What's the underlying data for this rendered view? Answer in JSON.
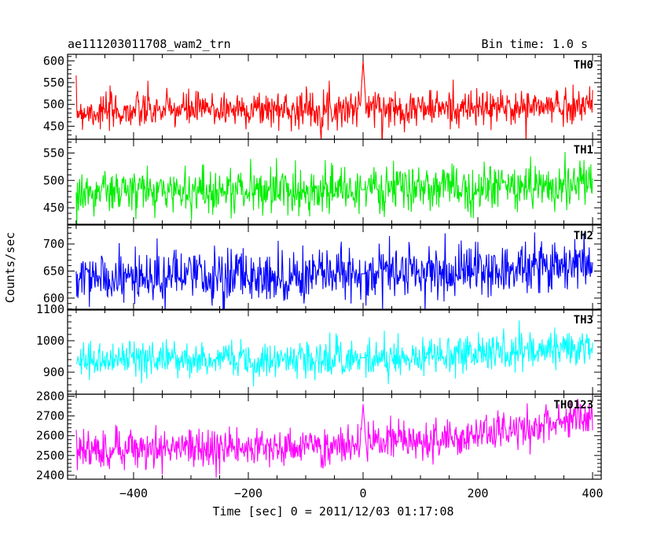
{
  "header": {
    "left": "ae111203011708_wam2_trn",
    "right": "Bin time: 1.0 s"
  },
  "chart_data": {
    "type": "line",
    "xlabel": "Time [sec] 0 = 2011/12/03 01:17:08",
    "ylabel": "Counts/sec",
    "xlim": [
      -515,
      415
    ],
    "x_ticks": [
      -400,
      -200,
      0,
      200,
      400
    ],
    "x_tick_labels": [
      "−400",
      "−200",
      "0",
      "200",
      "400"
    ],
    "panels": [
      {
        "name": "TH0",
        "color": "#ff0000",
        "ylim": [
          420,
          615
        ],
        "y_ticks": [
          450,
          500,
          550,
          600
        ],
        "y_tick_labels": [
          "450",
          "500",
          "550",
          "600"
        ],
        "x": [
          -500,
          -450,
          -400,
          -350,
          -300,
          -250,
          -200,
          -150,
          -100,
          -50,
          -5,
          0,
          5,
          50,
          100,
          150,
          200,
          250,
          300,
          350,
          400
        ],
        "values": [
          485,
          482,
          484,
          486,
          488,
          489,
          490,
          489,
          490,
          490,
          492,
          600,
          495,
          490,
          492,
          491,
          490,
          492,
          494,
          496,
          500
        ]
      },
      {
        "name": "TH1",
        "color": "#00ee00",
        "ylim": [
          420,
          575
        ],
        "y_ticks": [
          450,
          500,
          550
        ],
        "y_tick_labels": [
          "450",
          "500",
          "550"
        ],
        "x": [
          -500,
          -450,
          -400,
          -350,
          -300,
          -250,
          -200,
          -150,
          -100,
          -50,
          0,
          50,
          100,
          150,
          200,
          250,
          300,
          350,
          400
        ],
        "values": [
          478,
          479,
          480,
          481,
          482,
          481,
          483,
          482,
          483,
          482,
          483,
          484,
          485,
          486,
          487,
          488,
          490,
          492,
          494
        ]
      },
      {
        "name": "TH2",
        "color": "#0000ff",
        "ylim": [
          578,
          735
        ],
        "y_ticks": [
          600,
          650,
          700
        ],
        "y_tick_labels": [
          "600",
          "650",
          "700"
        ],
        "x": [
          -500,
          -450,
          -400,
          -350,
          -300,
          -250,
          -200,
          -150,
          -100,
          -50,
          0,
          50,
          100,
          150,
          200,
          250,
          300,
          350,
          400
        ],
        "values": [
          635,
          636,
          637,
          638,
          639,
          640,
          640,
          641,
          642,
          643,
          645,
          647,
          648,
          650,
          652,
          655,
          658,
          662,
          665
        ]
      },
      {
        "name": "TH3",
        "color": "#00ffff",
        "ylim": [
          830,
          1100
        ],
        "y_ticks": [
          900,
          1000,
          1100
        ],
        "y_tick_labels": [
          "900",
          "1000",
          "1100"
        ],
        "x": [
          -500,
          -450,
          -400,
          -350,
          -300,
          -250,
          -200,
          -150,
          -100,
          -50,
          0,
          50,
          100,
          150,
          200,
          250,
          300,
          350,
          400
        ],
        "values": [
          938,
          938,
          939,
          940,
          941,
          942,
          942,
          943,
          944,
          945,
          946,
          947,
          950,
          955,
          960,
          965,
          970,
          980,
          990
        ]
      },
      {
        "name": "TH0123",
        "color": "#ff00ff",
        "ylim": [
          2380,
          2810
        ],
        "y_ticks": [
          2400,
          2500,
          2600,
          2700,
          2800
        ],
        "y_tick_labels": [
          "2400",
          "2500",
          "2600",
          "2700",
          "2800"
        ],
        "x": [
          -500,
          -450,
          -400,
          -350,
          -300,
          -250,
          -200,
          -150,
          -100,
          -50,
          -5,
          0,
          5,
          50,
          100,
          150,
          200,
          250,
          300,
          350,
          400
        ],
        "values": [
          2520,
          2525,
          2530,
          2535,
          2540,
          2540,
          2540,
          2540,
          2542,
          2545,
          2550,
          2760,
          2560,
          2565,
          2575,
          2585,
          2600,
          2615,
          2640,
          2670,
          2690
        ]
      }
    ]
  }
}
